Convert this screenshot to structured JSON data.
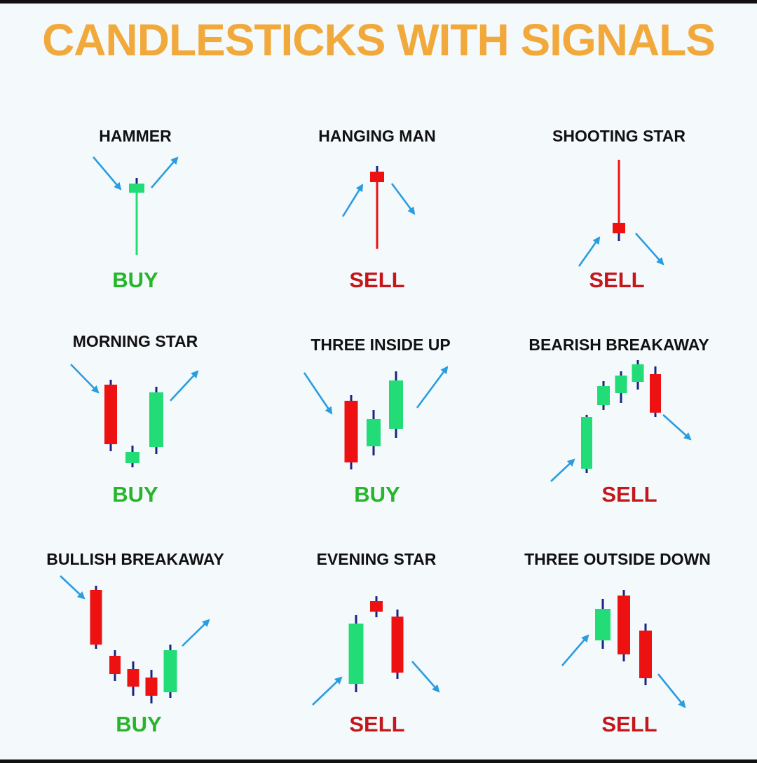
{
  "title": "CANDLESTICKS WITH SIGNALS",
  "colors": {
    "title": "#f2a93b",
    "bull": "#22dd77",
    "bull_text": "#26b52b",
    "bear": "#ee1111",
    "bear_text": "#c4171c",
    "wick": "#1a2580",
    "arrow": "#2a9de0"
  },
  "patterns": [
    {
      "name": "HAMMER",
      "signal": "BUY"
    },
    {
      "name": "HANGING MAN",
      "signal": "SELL"
    },
    {
      "name": "SHOOTING STAR",
      "signal": "SELL"
    },
    {
      "name": "MORNING STAR",
      "signal": "BUY"
    },
    {
      "name": "THREE INSIDE UP",
      "signal": "BUY"
    },
    {
      "name": "BEARISH BREAKAWAY",
      "signal": "SELL"
    },
    {
      "name": "BULLISH BREAKAWAY",
      "signal": "BUY"
    },
    {
      "name": "EVENING STAR",
      "signal": "SELL"
    },
    {
      "name": "THREE OUTSIDE DOWN",
      "signal": "SELL"
    }
  ]
}
